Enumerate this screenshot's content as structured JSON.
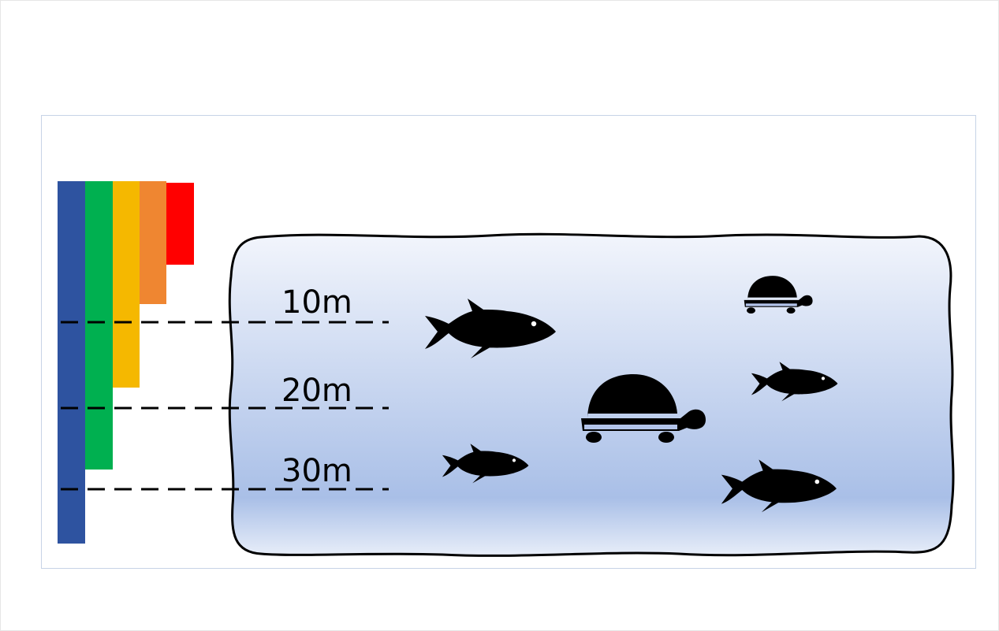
{
  "diagram": {
    "depth_labels": [
      "10m",
      "20m",
      "30m"
    ],
    "colors": {
      "blue": "#2e53a0",
      "green": "#00b050",
      "yellow": "#f5b800",
      "orange": "#ef8631",
      "red": "#ff0000",
      "water_top": "#f2f5fc",
      "water_bottom": "#a9bfe7",
      "outline": "#000000"
    },
    "icons": [
      "fish-icon",
      "turtle-icon"
    ]
  }
}
